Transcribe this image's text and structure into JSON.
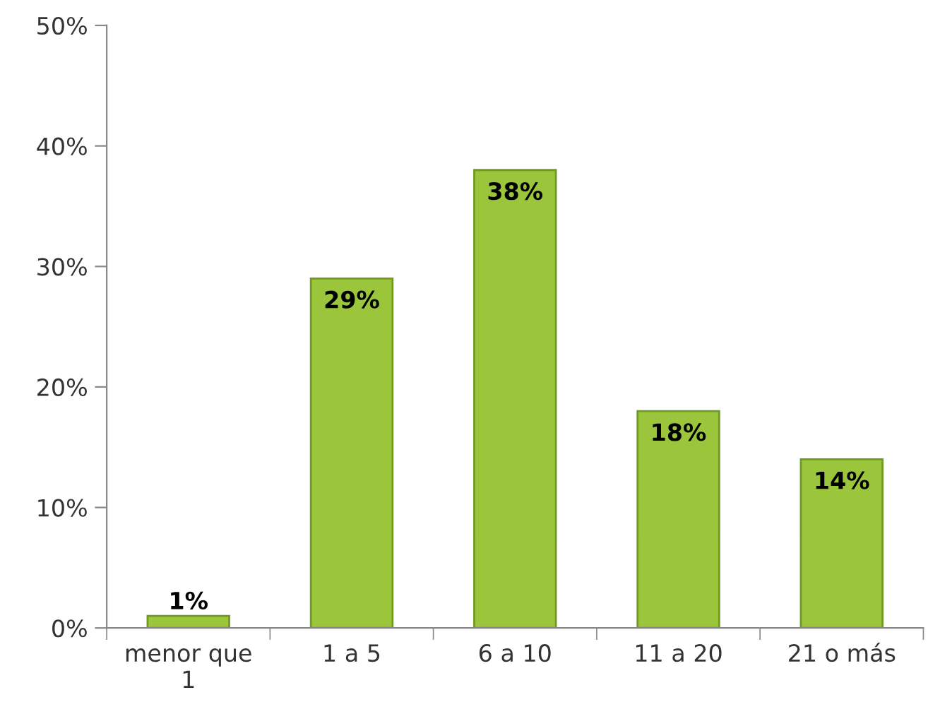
{
  "chart_data": {
    "type": "bar",
    "categories": [
      "menor que\n1",
      "1 a 5",
      "6 a 10",
      "11 a 20",
      "21 o más"
    ],
    "values": [
      1,
      29,
      38,
      18,
      14
    ],
    "value_labels": [
      "1%",
      "29%",
      "38%",
      "18%",
      "14%"
    ],
    "color": "#9bc63b",
    "ylim": [
      0,
      50
    ],
    "yticks": [
      {
        "value": 0,
        "label": "0%"
      },
      {
        "value": 10,
        "label": "10%"
      },
      {
        "value": 20,
        "label": "20%"
      },
      {
        "value": 30,
        "label": "30%"
      },
      {
        "value": 40,
        "label": "40%"
      },
      {
        "value": 50,
        "label": "50%"
      }
    ],
    "grid": false,
    "legend": false
  }
}
